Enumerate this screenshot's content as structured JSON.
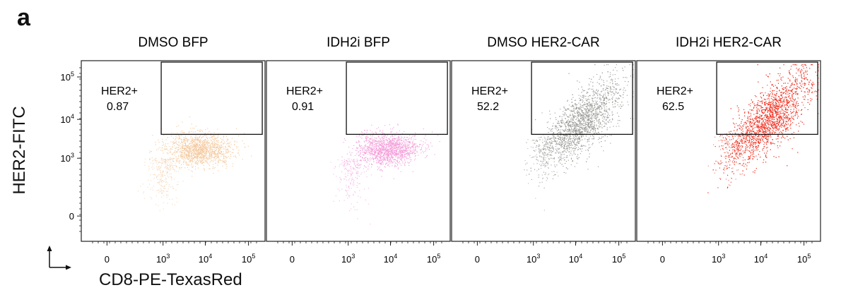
{
  "figure": {
    "panel_letter": "a",
    "ylabel": "HER2-FITC",
    "xlabel": "CD8-PE-TexasRed"
  },
  "chart_data": [
    {
      "type": "scatter",
      "title": "DMSO BFP",
      "gate_label": "HER2+",
      "gate_value": "0.87",
      "color": "#f4c89c",
      "xlabel": "CD8-PE-TexasRed",
      "ylabel": "HER2-FITC",
      "x_ticks": [
        "0",
        "10^3",
        "10^4",
        "10^5"
      ],
      "y_ticks": [
        "0",
        "10^3",
        "10^4",
        "10^5"
      ]
    },
    {
      "type": "scatter",
      "title": "IDH2i BFP",
      "gate_label": "HER2+",
      "gate_value": "0.91",
      "color": "#f49ad8",
      "xlabel": "CD8-PE-TexasRed",
      "ylabel": "HER2-FITC",
      "x_ticks": [
        "0",
        "10^3",
        "10^4",
        "10^5"
      ],
      "y_ticks": [
        "0",
        "10^3",
        "10^4",
        "10^5"
      ]
    },
    {
      "type": "scatter",
      "title": "DMSO HER2-CAR",
      "gate_label": "HER2+",
      "gate_value": "52.2",
      "color": "#9a9a96",
      "xlabel": "CD8-PE-TexasRed",
      "ylabel": "HER2-FITC",
      "x_ticks": [
        "0",
        "10^3",
        "10^4",
        "10^5"
      ],
      "y_ticks": [
        "0",
        "10^3",
        "10^4",
        "10^5"
      ]
    },
    {
      "type": "scatter",
      "title": "IDH2i HER2-CAR",
      "gate_label": "HER2+",
      "gate_value": "62.5",
      "color": "#f03020",
      "xlabel": "CD8-PE-TexasRed",
      "ylabel": "HER2-FITC",
      "x_ticks": [
        "0",
        "10^3",
        "10^4",
        "10^5"
      ],
      "y_ticks": [
        "0",
        "10^3",
        "10^4",
        "10^5"
      ]
    }
  ]
}
